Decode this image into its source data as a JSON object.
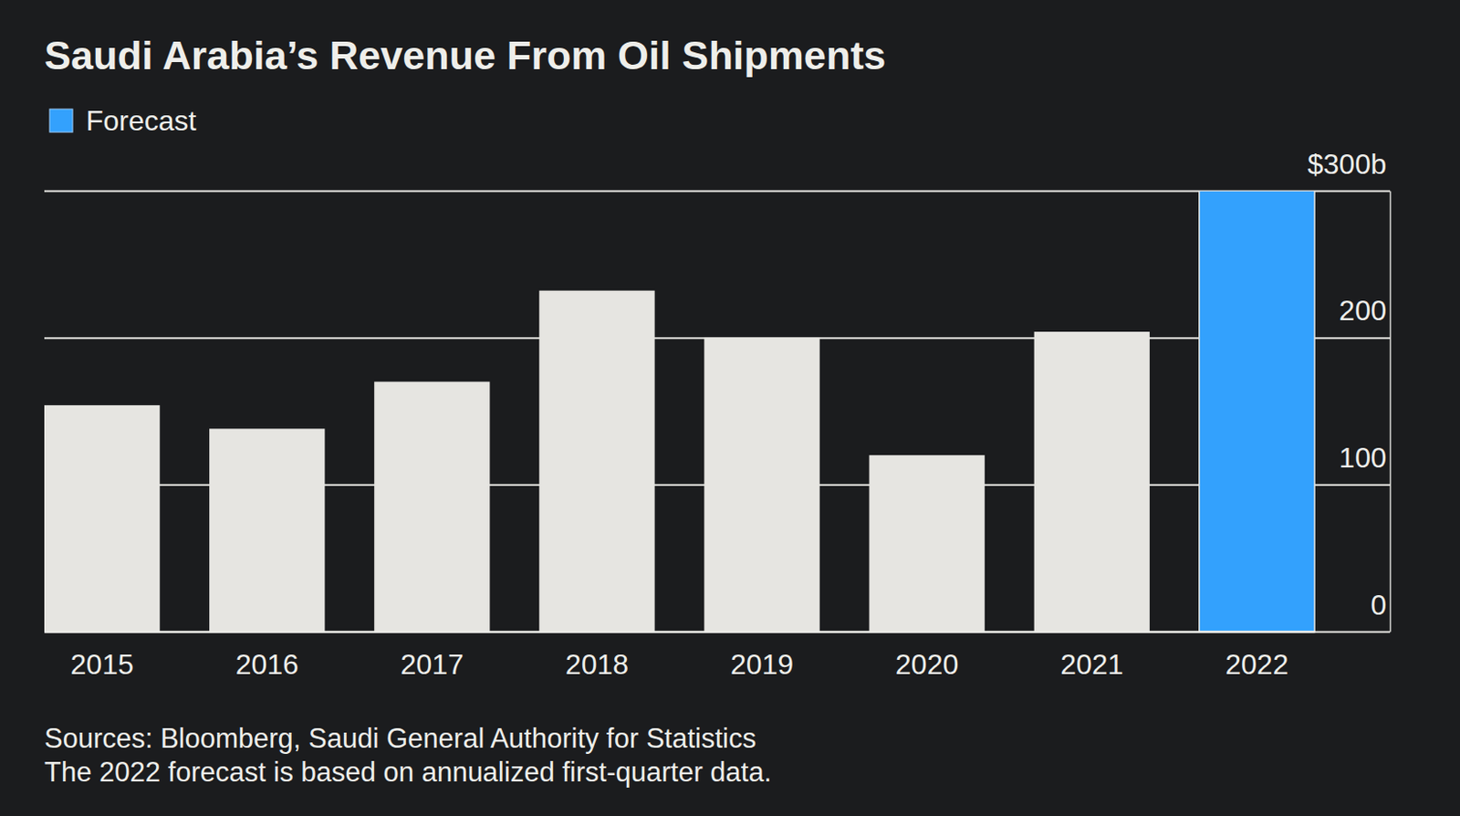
{
  "chart_data": {
    "type": "bar",
    "title": "Saudi Arabia’s Revenue From Oil Shipments",
    "categories": [
      "2015",
      "2016",
      "2017",
      "2018",
      "2019",
      "2020",
      "2021",
      "2022"
    ],
    "series": [
      {
        "color": "#e6e5e1",
        "values": [
          154,
          138,
          170,
          232,
          200,
          120,
          204,
          null
        ]
      },
      {
        "name": "Forecast",
        "color": "#33a1fd",
        "values": [
          null,
          null,
          null,
          null,
          null,
          null,
          null,
          300
        ]
      }
    ],
    "ylim": [
      0,
      300
    ],
    "yticks": [
      0,
      100,
      200,
      {
        "value": 300,
        "label": "$300b"
      }
    ],
    "grid": true,
    "legend": "top-left",
    "notes": [
      "Sources: Bloomberg, Saudi General Authority for Statistics",
      "The 2022 forecast is based on annualized first-quarter data."
    ]
  }
}
